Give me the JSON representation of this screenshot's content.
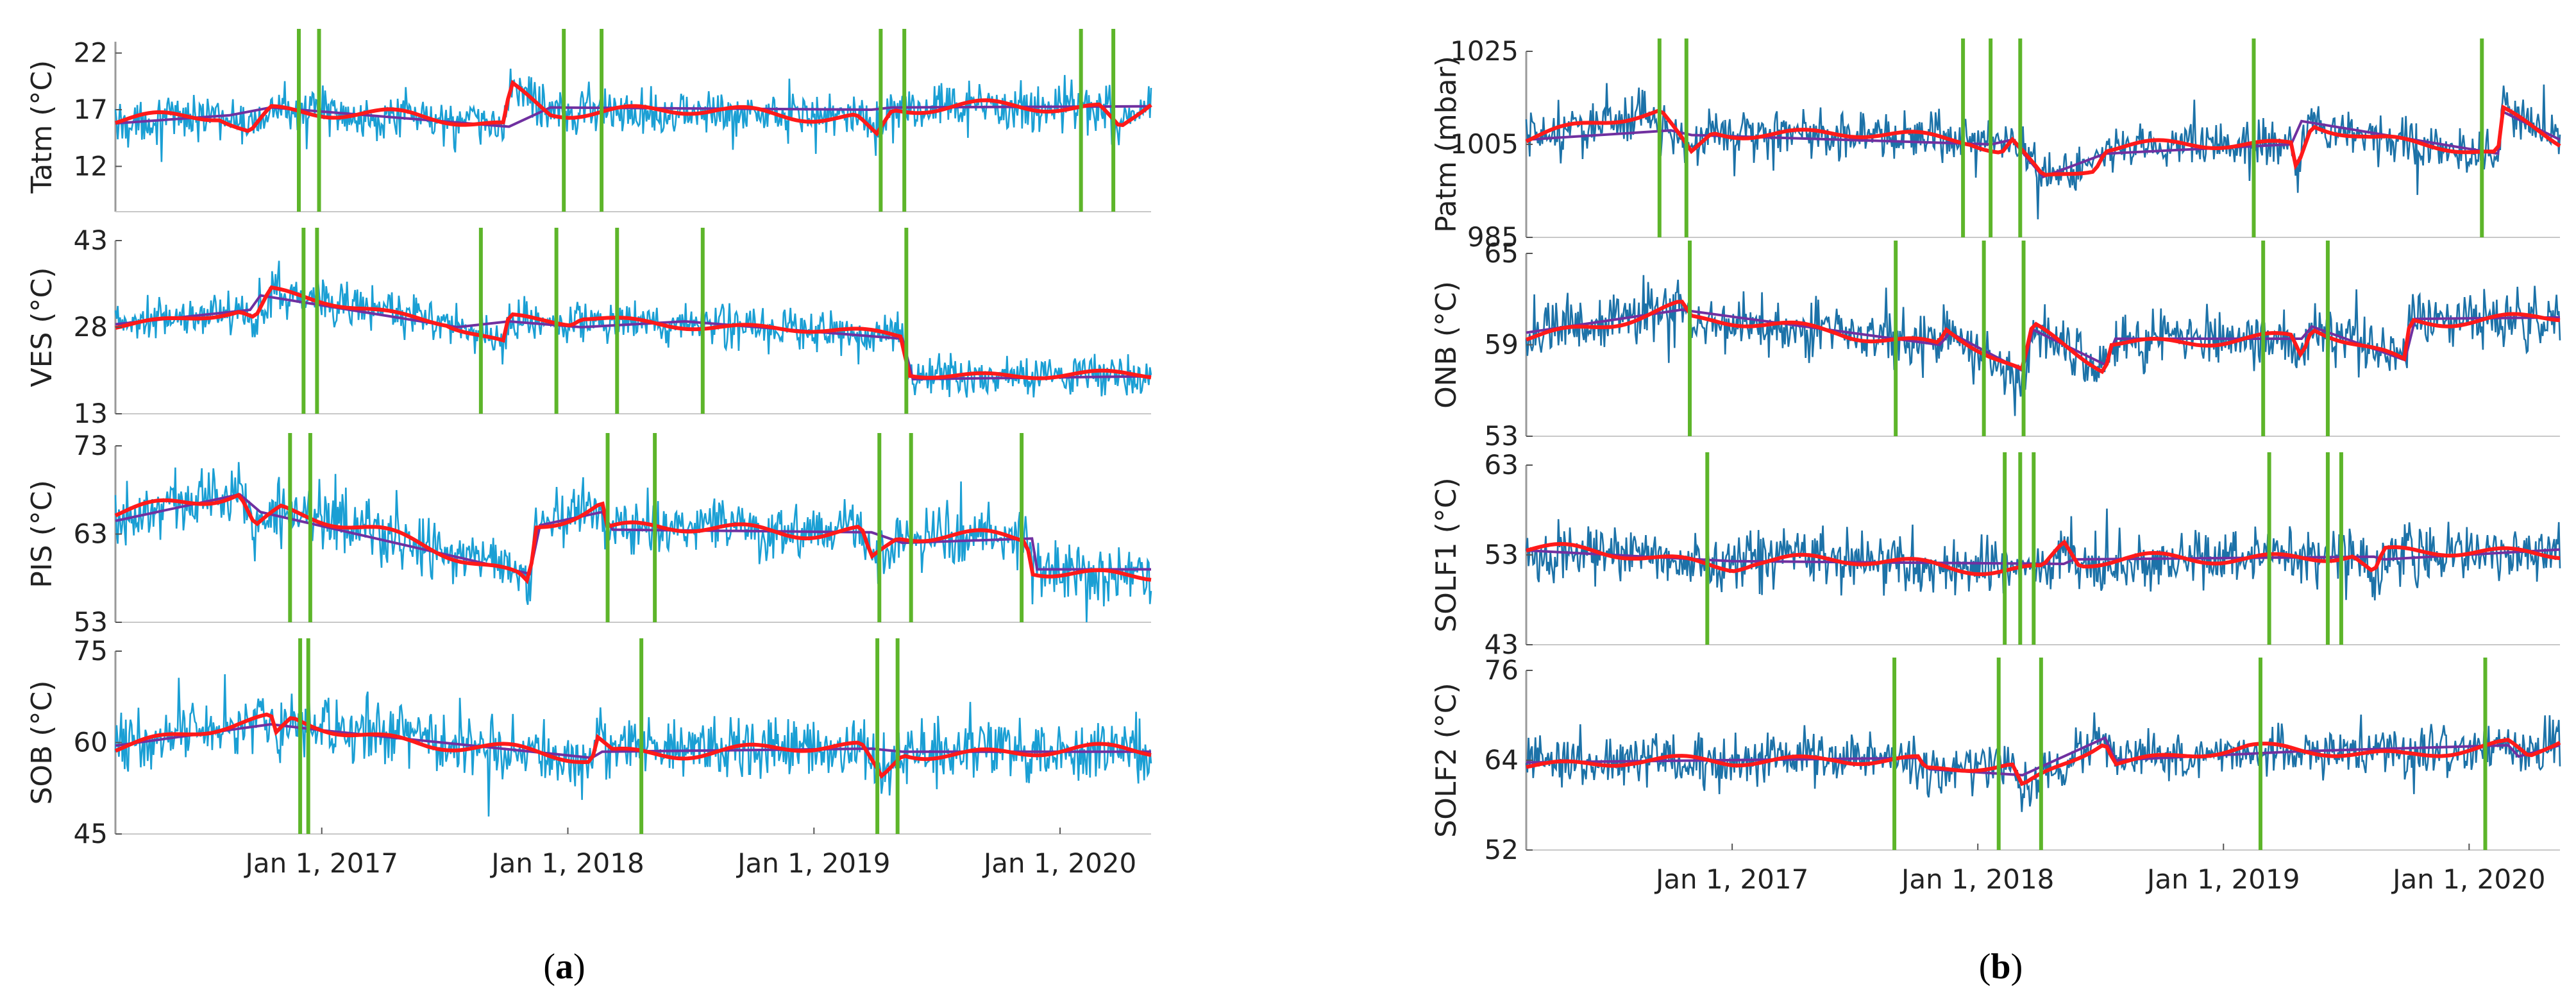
{
  "figure": {
    "panel_a_label": "a",
    "panel_b_label": "b",
    "colors": {
      "raw": "#1a9fd4",
      "raw_dark": "#1c72a8",
      "smooth": "#ff1a1a",
      "trend": "#7030a0",
      "changepoint": "#5db52a",
      "axis": "#999999"
    }
  },
  "chart_data": [
    {
      "type": "line",
      "panel": "a",
      "x_date_range": [
        "2016-03-01",
        "2020-05-15"
      ],
      "x_ticks": [
        {
          "date": "2017-01-01",
          "label": "Jan 1, 2017"
        },
        {
          "date": "2018-01-01",
          "label": "Jan 1, 2018"
        },
        {
          "date": "2019-01-01",
          "label": "Jan 1, 2019"
        },
        {
          "date": "2020-01-01",
          "label": "Jan 1, 2020"
        }
      ],
      "subplots": [
        {
          "name": "tatm",
          "ylabel": "Tatm (°C)",
          "ylim": [
            8,
            23
          ],
          "yticks": [
            12,
            17,
            22
          ],
          "noise": 1.8,
          "smooth_amp": 0.7,
          "change_points": [
            "2016-11-28",
            "2016-12-28",
            "2017-12-26",
            "2018-02-20",
            "2019-04-10",
            "2019-05-15",
            "2020-02-01",
            "2020-03-20"
          ],
          "trend": [
            [
              0,
              15.8
            ],
            [
              0.1,
              16.6
            ],
            [
              0.13,
              15.2
            ],
            [
              0.15,
              17.2
            ],
            [
              0.375,
              15.6
            ],
            [
              0.382,
              19.2
            ],
            [
              0.42,
              17.0
            ],
            [
              0.715,
              16.5
            ],
            [
              0.735,
              14.7
            ],
            [
              0.75,
              17.0
            ],
            [
              0.95,
              17.3
            ],
            [
              0.97,
              15.5
            ],
            [
              1,
              18.0
            ]
          ],
          "trend_line": [
            [
              0,
              15.8
            ],
            [
              0.11,
              16.5
            ],
            [
              0.15,
              17.2
            ],
            [
              0.38,
              15.5
            ],
            [
              0.42,
              17.2
            ],
            [
              0.73,
              17.0
            ],
            [
              0.75,
              17.2
            ],
            [
              1,
              17.3
            ]
          ]
        },
        {
          "name": "ves",
          "ylabel": "VES (°C)",
          "ylim": [
            13,
            43
          ],
          "yticks": [
            13,
            28,
            43
          ],
          "noise": 3.2,
          "smooth_amp": 0.9,
          "change_points": [
            "2016-12-05",
            "2016-12-25",
            "2017-08-25",
            "2017-12-15",
            "2018-03-15",
            "2018-07-20",
            "2019-05-18"
          ],
          "trend": [
            [
              0,
              28.5
            ],
            [
              0.12,
              30.5
            ],
            [
              0.135,
              29.0
            ],
            [
              0.15,
              34.0
            ],
            [
              0.32,
              29.0
            ],
            [
              0.325,
              28.5
            ],
            [
              0.375,
              25.0
            ],
            [
              0.38,
              29.5
            ],
            [
              0.44,
              28.5
            ],
            [
              0.45,
              29.5
            ],
            [
              0.56,
              28.5
            ],
            [
              0.76,
              26.5
            ],
            [
              0.765,
              20.0
            ],
            [
              1,
              19.5
            ]
          ],
          "trend_line": [
            [
              0,
              28.5
            ],
            [
              0.13,
              31
            ],
            [
              0.14,
              33.5
            ],
            [
              0.33,
              28
            ],
            [
              0.38,
              29
            ],
            [
              0.45,
              28
            ],
            [
              0.55,
              29
            ],
            [
              0.76,
              26
            ],
            [
              0.77,
              19
            ],
            [
              1,
              19.5
            ]
          ]
        },
        {
          "name": "pis",
          "ylabel": "PIS (°C)",
          "ylim": [
            53,
            73
          ],
          "yticks": [
            53,
            63,
            73
          ],
          "noise": 3.0,
          "smooth_amp": 1.0,
          "change_points": [
            "2016-11-15",
            "2016-12-15",
            "2018-03-01",
            "2018-05-10",
            "2019-04-08",
            "2019-05-25",
            "2019-11-05"
          ],
          "trend": [
            [
              0,
              65.0
            ],
            [
              0.12,
              68.0
            ],
            [
              0.135,
              64.0
            ],
            [
              0.16,
              66.0
            ],
            [
              0.39,
              58.5
            ],
            [
              0.4,
              57.5
            ],
            [
              0.405,
              64.0
            ],
            [
              0.47,
              66.5
            ],
            [
              0.475,
              63.5
            ],
            [
              0.72,
              63.5
            ],
            [
              0.73,
              60.0
            ],
            [
              0.755,
              62.5
            ],
            [
              0.88,
              62.5
            ],
            [
              0.885,
              59.0
            ],
            [
              1,
              58.5
            ]
          ],
          "trend_line": [
            [
              0,
              64.5
            ],
            [
              0.12,
              67.5
            ],
            [
              0.14,
              65.5
            ],
            [
              0.4,
              58.5
            ],
            [
              0.41,
              64
            ],
            [
              0.47,
              65.5
            ],
            [
              0.48,
              63.5
            ],
            [
              0.73,
              63.2
            ],
            [
              0.76,
              62
            ],
            [
              0.885,
              62.5
            ],
            [
              0.89,
              59
            ],
            [
              1,
              59
            ]
          ]
        },
        {
          "name": "sob",
          "ylabel": "SOB (°C)",
          "ylim": [
            45,
            75
          ],
          "yticks": [
            45,
            60,
            75
          ],
          "noise": 4.5,
          "smooth_amp": 1.3,
          "change_points": [
            "2016-11-30",
            "2016-12-12",
            "2018-04-20",
            "2019-04-05",
            "2019-05-05"
          ],
          "trend": [
            [
              0,
              59.5
            ],
            [
              0.15,
              63.5
            ],
            [
              0.155,
              60.5
            ],
            [
              0.17,
              63.5
            ],
            [
              0.3,
              60.0
            ],
            [
              0.46,
              57.0
            ],
            [
              0.465,
              61.0
            ],
            [
              0.48,
              58.5
            ],
            [
              0.72,
              59.0
            ],
            [
              0.74,
              54.0
            ],
            [
              0.76,
              58.5
            ],
            [
              1,
              58.5
            ]
          ],
          "trend_line": [
            [
              0,
              59.5
            ],
            [
              0.15,
              63
            ],
            [
              0.2,
              62
            ],
            [
              0.46,
              57.5
            ],
            [
              0.47,
              58.5
            ],
            [
              0.73,
              59
            ],
            [
              0.76,
              58.5
            ],
            [
              1,
              58.5
            ]
          ]
        }
      ]
    },
    {
      "type": "line",
      "panel": "b",
      "x_date_range": [
        "2016-03-01",
        "2020-05-15"
      ],
      "x_ticks": [
        {
          "date": "2017-01-01",
          "label": "Jan 1, 2017"
        },
        {
          "date": "2018-01-01",
          "label": "Jan 1, 2018"
        },
        {
          "date": "2019-01-01",
          "label": "Jan 1, 2019"
        },
        {
          "date": "2020-01-01",
          "label": "Jan 1, 2020"
        }
      ],
      "subplots": [
        {
          "name": "patm",
          "ylabel": "Patm (mbar)",
          "ylim": [
            985,
            1025
          ],
          "yticks": [
            985,
            1005,
            1025
          ],
          "noise": 4.5,
          "smooth_amp": 1.5,
          "change_points": [
            "2016-09-15",
            "2016-10-25",
            "2017-12-10",
            "2018-01-20",
            "2018-03-05",
            "2019-02-15",
            "2020-01-20"
          ],
          "trend": [
            [
              0,
              1006
            ],
            [
              0.13,
              1012
            ],
            [
              0.16,
              1003
            ],
            [
              0.18,
              1008
            ],
            [
              0.43,
              1006
            ],
            [
              0.46,
              1004
            ],
            [
              0.47,
              1006.5
            ],
            [
              0.5,
              998
            ],
            [
              0.55,
              1000
            ],
            [
              0.56,
              1004
            ],
            [
              0.74,
              1005.5
            ],
            [
              0.745,
              1000
            ],
            [
              0.76,
              1010
            ],
            [
              0.82,
              1006
            ],
            [
              0.94,
              1002.5
            ],
            [
              0.945,
              1012
            ],
            [
              1,
              1006
            ]
          ],
          "trend_line": [
            [
              0,
              1006
            ],
            [
              0.14,
              1008
            ],
            [
              0.16,
              1007
            ],
            [
              0.45,
              1005
            ],
            [
              0.47,
              1006
            ],
            [
              0.5,
              998
            ],
            [
              0.56,
              1003
            ],
            [
              0.74,
              1005
            ],
            [
              0.75,
              1010
            ],
            [
              0.94,
              1003
            ],
            [
              0.945,
              1012
            ],
            [
              1,
              1006
            ]
          ]
        },
        {
          "name": "onb",
          "ylabel": "ONB (°C)",
          "ylim": [
            53,
            65
          ],
          "yticks": [
            53,
            59,
            65
          ],
          "noise": 1.5,
          "smooth_amp": 0.5,
          "change_points": [
            "2016-10-30",
            "2017-09-01",
            "2018-01-10",
            "2018-03-10",
            "2019-03-01",
            "2019-06-05"
          ],
          "trend": [
            [
              0,
              59.5
            ],
            [
              0.15,
              61.5
            ],
            [
              0.16,
              60.5
            ],
            [
              0.3,
              60.0
            ],
            [
              0.4,
              59.0
            ],
            [
              0.405,
              60.0
            ],
            [
              0.48,
              57.0
            ],
            [
              0.49,
              60.0
            ],
            [
              0.56,
              57.5
            ],
            [
              0.565,
              59.3
            ],
            [
              0.74,
              59.3
            ],
            [
              0.75,
              58.0
            ],
            [
              0.76,
              60.0
            ],
            [
              0.85,
              58.0
            ],
            [
              0.855,
              60.7
            ],
            [
              1,
              60.7
            ]
          ],
          "trend_line": [
            [
              0,
              59.8
            ],
            [
              0.15,
              61.3
            ],
            [
              0.4,
              59
            ],
            [
              0.41,
              59.8
            ],
            [
              0.48,
              57.3
            ],
            [
              0.49,
              60
            ],
            [
              0.56,
              57.7
            ],
            [
              0.57,
              59.4
            ],
            [
              0.75,
              59.4
            ],
            [
              0.76,
              60.2
            ],
            [
              0.85,
              58
            ],
            [
              0.86,
              60.7
            ],
            [
              1,
              60.8
            ]
          ]
        },
        {
          "name": "solf1",
          "ylabel": "SOLF1 (°C)",
          "ylim": [
            43,
            63
          ],
          "yticks": [
            43,
            53,
            63
          ],
          "noise": 2.8,
          "smooth_amp": 0.9,
          "change_points": [
            "2016-11-25",
            "2018-02-10",
            "2018-03-05",
            "2018-03-25",
            "2019-03-10",
            "2019-06-05",
            "2019-06-25"
          ],
          "trend": [
            [
              0,
              53.5
            ],
            [
              0.1,
              53.0
            ],
            [
              0.2,
              52.0
            ],
            [
              0.22,
              52.5
            ],
            [
              0.5,
              51.5
            ],
            [
              0.52,
              54.5
            ],
            [
              0.535,
              52.0
            ],
            [
              0.74,
              53.0
            ],
            [
              0.8,
              53.0
            ],
            [
              0.82,
              50.5
            ],
            [
              0.83,
              53.0
            ],
            [
              1,
              53.5
            ]
          ],
          "trend_line": [
            [
              0,
              53.5
            ],
            [
              0.2,
              52.3
            ],
            [
              0.52,
              52
            ],
            [
              0.53,
              52.5
            ],
            [
              0.82,
              52.8
            ],
            [
              0.83,
              52.5
            ],
            [
              1,
              53.6
            ]
          ]
        },
        {
          "name": "solf2",
          "ylabel": "SOLF2 (°C)",
          "ylim": [
            52,
            76
          ],
          "yticks": [
            52,
            64,
            76
          ],
          "noise": 3.0,
          "smooth_amp": 0.9,
          "change_points": [
            "2017-08-30",
            "2018-02-01",
            "2018-04-05",
            "2019-02-25",
            "2020-01-25"
          ],
          "trend": [
            [
              0,
              63.5
            ],
            [
              0.1,
              64.0
            ],
            [
              0.2,
              63.5
            ],
            [
              0.3,
              64.5
            ],
            [
              0.38,
              64.0
            ],
            [
              0.385,
              62.5
            ],
            [
              0.47,
              63.0
            ],
            [
              0.48,
              60.0
            ],
            [
              0.56,
              67.0
            ],
            [
              0.57,
              64.0
            ],
            [
              0.7,
              65.5
            ],
            [
              0.75,
              65.0
            ],
            [
              0.85,
              65.0
            ],
            [
              0.95,
              66.0
            ],
            [
              0.97,
              64.0
            ],
            [
              1,
              66.5
            ]
          ],
          "trend_line": [
            [
              0,
              63.7
            ],
            [
              0.38,
              64.3
            ],
            [
              0.39,
              62.8
            ],
            [
              0.48,
              62
            ],
            [
              0.56,
              67
            ],
            [
              0.57,
              64
            ],
            [
              0.75,
              65.2
            ],
            [
              0.95,
              66
            ],
            [
              0.96,
              64.5
            ],
            [
              1,
              66
            ]
          ]
        }
      ]
    }
  ]
}
